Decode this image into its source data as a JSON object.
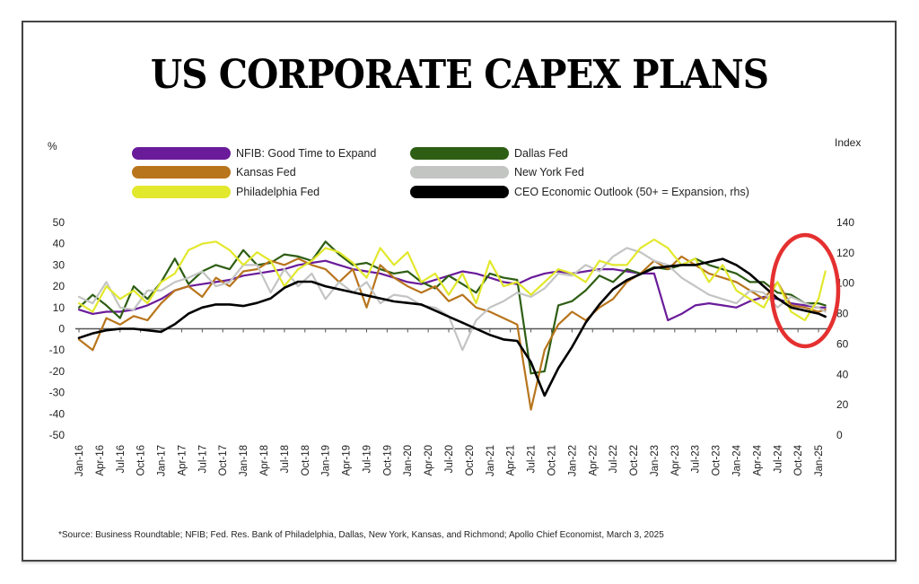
{
  "title": "US CORPORATE CAPEX PLANS",
  "left_axis_unit": "%",
  "right_axis_unit": "Index",
  "footnote": "*Source: Business Roundtable; NFIB; Fed. Res. Bank of Philadelphia, Dallas, New York, Kansas, and Richmond; Apollo Chief Economist, March 3, 2025",
  "chart_data": {
    "type": "line",
    "title": "US CORPORATE CAPEX PLANS",
    "ylabel": "%",
    "ylabel_right": "Index",
    "ylim": [
      -50,
      50
    ],
    "ylim_right": [
      0,
      140
    ],
    "yticks": [
      "50",
      "40",
      "30",
      "20",
      "10",
      "0",
      "-10",
      "-20",
      "-30",
      "-40",
      "-50"
    ],
    "yticks_right": [
      "140",
      "120",
      "100",
      "80",
      "60",
      "40",
      "20",
      "0"
    ],
    "x_tick_labels": [
      "Jan-16",
      "Apr-16",
      "Jul-16",
      "Oct-16",
      "Jan-17",
      "Apr-17",
      "Jul-17",
      "Oct-17",
      "Jan-18",
      "Apr-18",
      "Jul-18",
      "Oct-18",
      "Jan-19",
      "Apr-19",
      "Jul-19",
      "Oct-19",
      "Jan-20",
      "Apr-20",
      "Jul-20",
      "Oct-20",
      "Jan-21",
      "Apr-21",
      "Jul-21",
      "Oct-21",
      "Jan-22",
      "Apr-22",
      "Jul-22",
      "Oct-22",
      "Jan-23",
      "Apr-23",
      "Jul-23",
      "Oct-23",
      "Jan-24",
      "Apr-24",
      "Jul-24",
      "Oct-24",
      "Jan-25"
    ],
    "x_months_from_jan16": [
      0,
      2,
      4,
      6,
      8,
      10,
      12,
      14,
      16,
      18,
      20,
      22,
      24,
      26,
      28,
      30,
      32,
      34,
      36,
      38,
      40,
      42,
      44,
      46,
      48,
      50,
      52,
      54,
      56,
      58,
      60,
      62,
      64,
      66,
      68,
      70,
      72,
      74,
      76,
      78,
      80,
      82,
      84,
      86,
      88,
      90,
      92,
      94,
      96,
      98,
      100,
      102,
      104,
      106,
      108,
      109
    ],
    "legend_position": "top",
    "annotation": "red ellipse highlighting Jul-24 to Feb-25",
    "series": [
      {
        "name": "NFIB: Good Time to Expand",
        "axis": "left",
        "color": "#6a1b9a",
        "values": [
          9,
          7,
          8,
          8,
          9,
          11,
          14,
          18,
          20,
          21,
          22,
          23,
          25,
          26,
          27,
          28,
          30,
          31,
          32,
          30,
          28,
          27,
          26,
          24,
          22,
          21,
          23,
          25,
          27,
          26,
          24,
          22,
          21,
          24,
          26,
          27,
          26,
          27,
          28,
          28,
          27,
          26,
          26,
          4,
          7,
          11,
          12,
          11,
          10,
          13,
          15,
          14,
          12,
          11,
          10,
          10
        ]
      },
      {
        "name": "Dallas Fed",
        "axis": "left",
        "color": "#2e5e14",
        "values": [
          10,
          16,
          11,
          5,
          20,
          14,
          22,
          33,
          21,
          27,
          30,
          28,
          37,
          30,
          31,
          35,
          34,
          32,
          41,
          35,
          30,
          31,
          28,
          26,
          27,
          22,
          19,
          25,
          21,
          17,
          26,
          24,
          23,
          -21,
          -20,
          11,
          13,
          18,
          25,
          22,
          28,
          26,
          29,
          28,
          30,
          33,
          30,
          28,
          26,
          22,
          22,
          17,
          16,
          12,
          12,
          11
        ]
      },
      {
        "name": "Kansas Fed",
        "axis": "left",
        "color": "#b8751c",
        "values": [
          -5,
          -10,
          5,
          2,
          6,
          4,
          12,
          18,
          20,
          15,
          24,
          20,
          27,
          28,
          32,
          30,
          33,
          30,
          28,
          22,
          28,
          10,
          30,
          24,
          20,
          17,
          20,
          13,
          16,
          10,
          8,
          5,
          2,
          -38,
          -10,
          2,
          8,
          4,
          10,
          14,
          22,
          26,
          32,
          28,
          34,
          30,
          26,
          24,
          22,
          18,
          14,
          22,
          11,
          10,
          8,
          9
        ]
      },
      {
        "name": "New York Fed",
        "axis": "left",
        "color": "#c3c5c3",
        "values": [
          15,
          12,
          22,
          10,
          9,
          18,
          18,
          22,
          24,
          27,
          20,
          22,
          30,
          30,
          17,
          28,
          20,
          26,
          14,
          22,
          17,
          22,
          12,
          16,
          15,
          11,
          10,
          6,
          -10,
          4,
          10,
          13,
          17,
          15,
          19,
          26,
          25,
          30,
          27,
          34,
          38,
          36,
          32,
          30,
          24,
          20,
          16,
          14,
          12,
          18,
          17,
          10,
          15,
          12,
          10,
          8
        ]
      },
      {
        "name": "Philadelphia Fed",
        "axis": "left",
        "color": "#e2e82c",
        "values": [
          12,
          8,
          20,
          14,
          18,
          12,
          22,
          26,
          37,
          40,
          41,
          37,
          30,
          36,
          32,
          20,
          28,
          32,
          38,
          36,
          31,
          24,
          38,
          30,
          36,
          22,
          26,
          16,
          26,
          12,
          32,
          20,
          22,
          16,
          22,
          28,
          26,
          22,
          32,
          30,
          30,
          38,
          42,
          38,
          30,
          33,
          22,
          30,
          18,
          14,
          10,
          22,
          8,
          4,
          14,
          27
        ]
      },
      {
        "name": "CEO Economic Outlook (50+ = Expansion, rhs)",
        "axis": "right",
        "color": "#000000",
        "values": [
          64,
          67,
          69,
          70,
          70,
          69,
          68,
          73,
          80,
          84,
          86,
          86,
          85,
          87,
          90,
          97,
          101,
          101,
          98,
          96,
          94,
          92,
          90,
          88,
          87,
          86,
          82,
          78,
          74,
          70,
          66,
          63,
          62,
          48,
          26,
          44,
          58,
          74,
          86,
          96,
          102,
          106,
          110,
          111,
          112,
          112,
          114,
          116,
          112,
          106,
          98,
          90,
          84,
          82,
          80,
          78
        ]
      }
    ]
  }
}
